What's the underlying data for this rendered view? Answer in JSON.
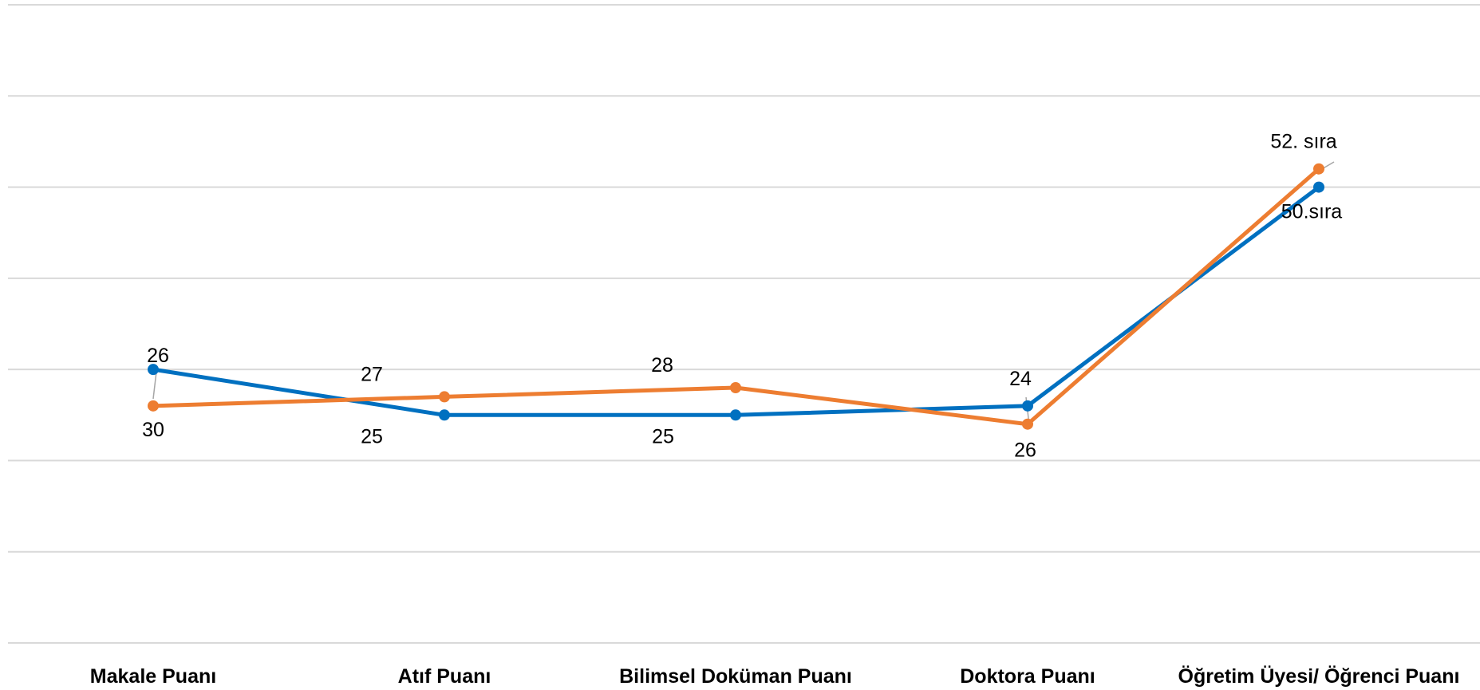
{
  "chart_data": {
    "type": "line",
    "categories": [
      "Makale Puanı",
      "Atıf Puanı",
      "Bilimsel Doküman Puanı",
      "Doktora Puanı",
      "Öğretim Üyesi/ Öğrenci Puanı"
    ],
    "series": [
      {
        "color": "#0070c0",
        "values": [
          2.0,
          1.5,
          1.5,
          1.6,
          4.0
        ],
        "labels": [
          "26",
          "25",
          "25",
          "24",
          "50.sıra"
        ]
      },
      {
        "color": "#ed7d31",
        "values": [
          1.6,
          1.7,
          1.8,
          1.4,
          4.2
        ],
        "labels": [
          "30",
          "27",
          "28",
          "26",
          "52. sıra"
        ]
      }
    ],
    "ylim": [
      -1,
      6
    ],
    "grid": true,
    "legend": "none"
  }
}
